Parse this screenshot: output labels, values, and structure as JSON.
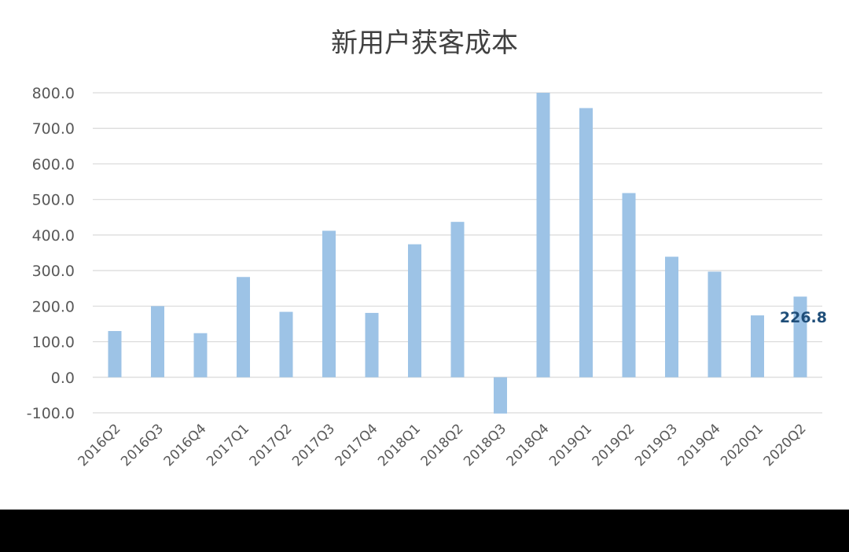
{
  "chart_data": {
    "type": "bar",
    "title": "新用户获客成本",
    "categories": [
      "2016Q2",
      "2016Q3",
      "2016Q4",
      "2017Q1",
      "2017Q2",
      "2017Q3",
      "2017Q4",
      "2018Q1",
      "2018Q2",
      "2018Q3",
      "2018Q4",
      "2019Q1",
      "2019Q2",
      "2019Q3",
      "2019Q4",
      "2020Q1",
      "2020Q2"
    ],
    "values": [
      130,
      200,
      124,
      282,
      184,
      412,
      181,
      374,
      437,
      -102,
      800,
      757,
      518,
      339,
      297,
      174,
      226.8
    ],
    "ylim": [
      -100,
      800
    ],
    "yticks": [
      "800.0",
      "700.0",
      "600.0",
      "500.0",
      "400.0",
      "300.0",
      "200.0",
      "100.0",
      "0.0",
      "-100.0"
    ],
    "ytick_values": [
      800,
      700,
      600,
      500,
      400,
      300,
      200,
      100,
      0,
      -100
    ],
    "data_labels": [
      {
        "category": "2020Q2",
        "text": "226.8"
      }
    ],
    "grid": true,
    "legend": "none",
    "bar_color": "#9dc3e6",
    "grid_color": "#d9d9d9"
  }
}
